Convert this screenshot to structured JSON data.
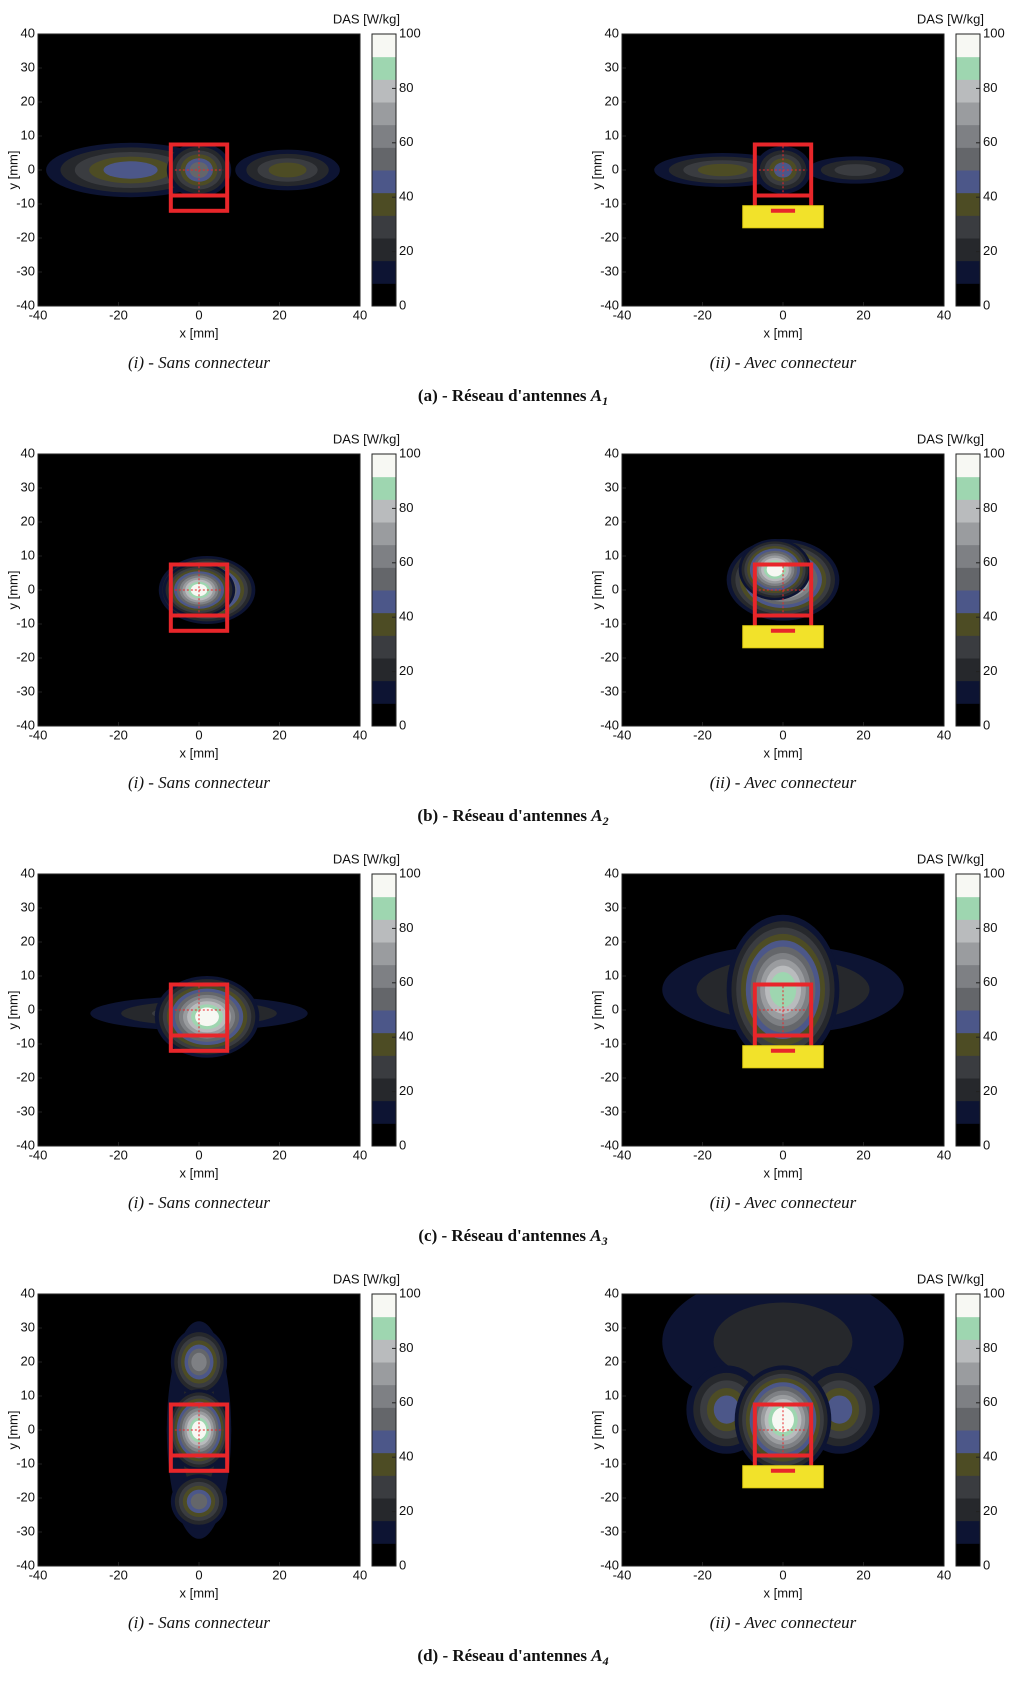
{
  "chart_data": [
    {
      "type": "contour",
      "xlabel": "x [mm]",
      "ylabel": "y [mm]",
      "colorbar_label": "DAS [W/kg]",
      "caption": "(i) - Sans connecteur",
      "xlim": [
        -40,
        40
      ],
      "ylim": [
        -40,
        40
      ],
      "xticks": [
        -40,
        -20,
        0,
        20,
        40
      ],
      "yticks": [
        -40,
        -30,
        -20,
        -10,
        0,
        10,
        20,
        30,
        40
      ],
      "clim": [
        0,
        100
      ],
      "cticks": [
        0,
        20,
        40,
        60,
        80,
        100
      ]
    },
    {
      "type": "contour",
      "xlabel": "x [mm]",
      "ylabel": "y [mm]",
      "colorbar_label": "DAS [W/kg]",
      "caption": "(ii) - Avec connecteur",
      "xlim": [
        -40,
        40
      ],
      "ylim": [
        -40,
        40
      ],
      "xticks": [
        -40,
        -20,
        0,
        20,
        40
      ],
      "yticks": [
        -40,
        -30,
        -20,
        -10,
        0,
        10,
        20,
        30,
        40
      ],
      "clim": [
        0,
        100
      ],
      "cticks": [
        0,
        20,
        40,
        60,
        80,
        100
      ]
    },
    {
      "type": "contour",
      "xlabel": "x [mm]",
      "ylabel": "y [mm]",
      "colorbar_label": "DAS [W/kg]",
      "caption": "(i) - Sans connecteur",
      "xlim": [
        -40,
        40
      ],
      "ylim": [
        -40,
        40
      ],
      "xticks": [
        -40,
        -20,
        0,
        20,
        40
      ],
      "yticks": [
        -40,
        -30,
        -20,
        -10,
        0,
        10,
        20,
        30,
        40
      ],
      "clim": [
        0,
        100
      ],
      "cticks": [
        0,
        20,
        40,
        60,
        80,
        100
      ]
    },
    {
      "type": "contour",
      "xlabel": "x [mm]",
      "ylabel": "y [mm]",
      "colorbar_label": "DAS [W/kg]",
      "caption": "(ii) - Avec connecteur",
      "xlim": [
        -40,
        40
      ],
      "ylim": [
        -40,
        40
      ],
      "xticks": [
        -40,
        -20,
        0,
        20,
        40
      ],
      "yticks": [
        -40,
        -30,
        -20,
        -10,
        0,
        10,
        20,
        30,
        40
      ],
      "clim": [
        0,
        100
      ],
      "cticks": [
        0,
        20,
        40,
        60,
        80,
        100
      ]
    },
    {
      "type": "contour",
      "xlabel": "x [mm]",
      "ylabel": "y [mm]",
      "colorbar_label": "DAS [W/kg]",
      "caption": "(i) - Sans connecteur",
      "xlim": [
        -40,
        40
      ],
      "ylim": [
        -40,
        40
      ],
      "xticks": [
        -40,
        -20,
        0,
        20,
        40
      ],
      "yticks": [
        -40,
        -30,
        -20,
        -10,
        0,
        10,
        20,
        30,
        40
      ],
      "clim": [
        0,
        100
      ],
      "cticks": [
        0,
        20,
        40,
        60,
        80,
        100
      ]
    },
    {
      "type": "contour",
      "xlabel": "x [mm]",
      "ylabel": "y [mm]",
      "colorbar_label": "DAS [W/kg]",
      "caption": "(ii) - Avec connecteur",
      "xlim": [
        -40,
        40
      ],
      "ylim": [
        -40,
        40
      ],
      "xticks": [
        -40,
        -20,
        0,
        20,
        40
      ],
      "yticks": [
        -40,
        -30,
        -20,
        -10,
        0,
        10,
        20,
        30,
        40
      ],
      "clim": [
        0,
        100
      ],
      "cticks": [
        0,
        20,
        40,
        60,
        80,
        100
      ]
    },
    {
      "type": "contour",
      "xlabel": "x [mm]",
      "ylabel": "y [mm]",
      "colorbar_label": "DAS [W/kg]",
      "caption": "(i) - Sans connecteur",
      "xlim": [
        -40,
        40
      ],
      "ylim": [
        -40,
        40
      ],
      "xticks": [
        -40,
        -20,
        0,
        20,
        40
      ],
      "yticks": [
        -40,
        -30,
        -20,
        -10,
        0,
        10,
        20,
        30,
        40
      ],
      "clim": [
        0,
        100
      ],
      "cticks": [
        0,
        20,
        40,
        60,
        80,
        100
      ]
    },
    {
      "type": "contour",
      "xlabel": "x [mm]",
      "ylabel": "y [mm]",
      "colorbar_label": "DAS [W/kg]",
      "caption": "(ii) - Avec connecteur",
      "xlim": [
        -40,
        40
      ],
      "ylim": [
        -40,
        40
      ],
      "xticks": [
        -40,
        -20,
        0,
        20,
        40
      ],
      "yticks": [
        -40,
        -30,
        -20,
        -10,
        0,
        10,
        20,
        30,
        40
      ],
      "clim": [
        0,
        100
      ],
      "cticks": [
        0,
        20,
        40,
        60,
        80,
        100
      ]
    }
  ],
  "colormap": [
    "#000000",
    "#0d1433",
    "#26282c",
    "#3a3c40",
    "#4d4c24",
    "#4c5789",
    "#64666a",
    "#7e8084",
    "#9a9c9f",
    "#b9bbbd",
    "#9ed6b0",
    "#f7f8f3"
  ],
  "figure_captions": [
    {
      "prefix": "(a) - Réseau d'antennes ",
      "symbol": "A",
      "subscript": "1"
    },
    {
      "prefix": "(b) - Réseau d'antennes ",
      "symbol": "A",
      "subscript": "2"
    },
    {
      "prefix": "(c) - Réseau d'antennes ",
      "symbol": "A",
      "subscript": "3"
    },
    {
      "prefix": "(d) - Réseau d'antennes ",
      "symbol": "A",
      "subscript": "4"
    }
  ]
}
